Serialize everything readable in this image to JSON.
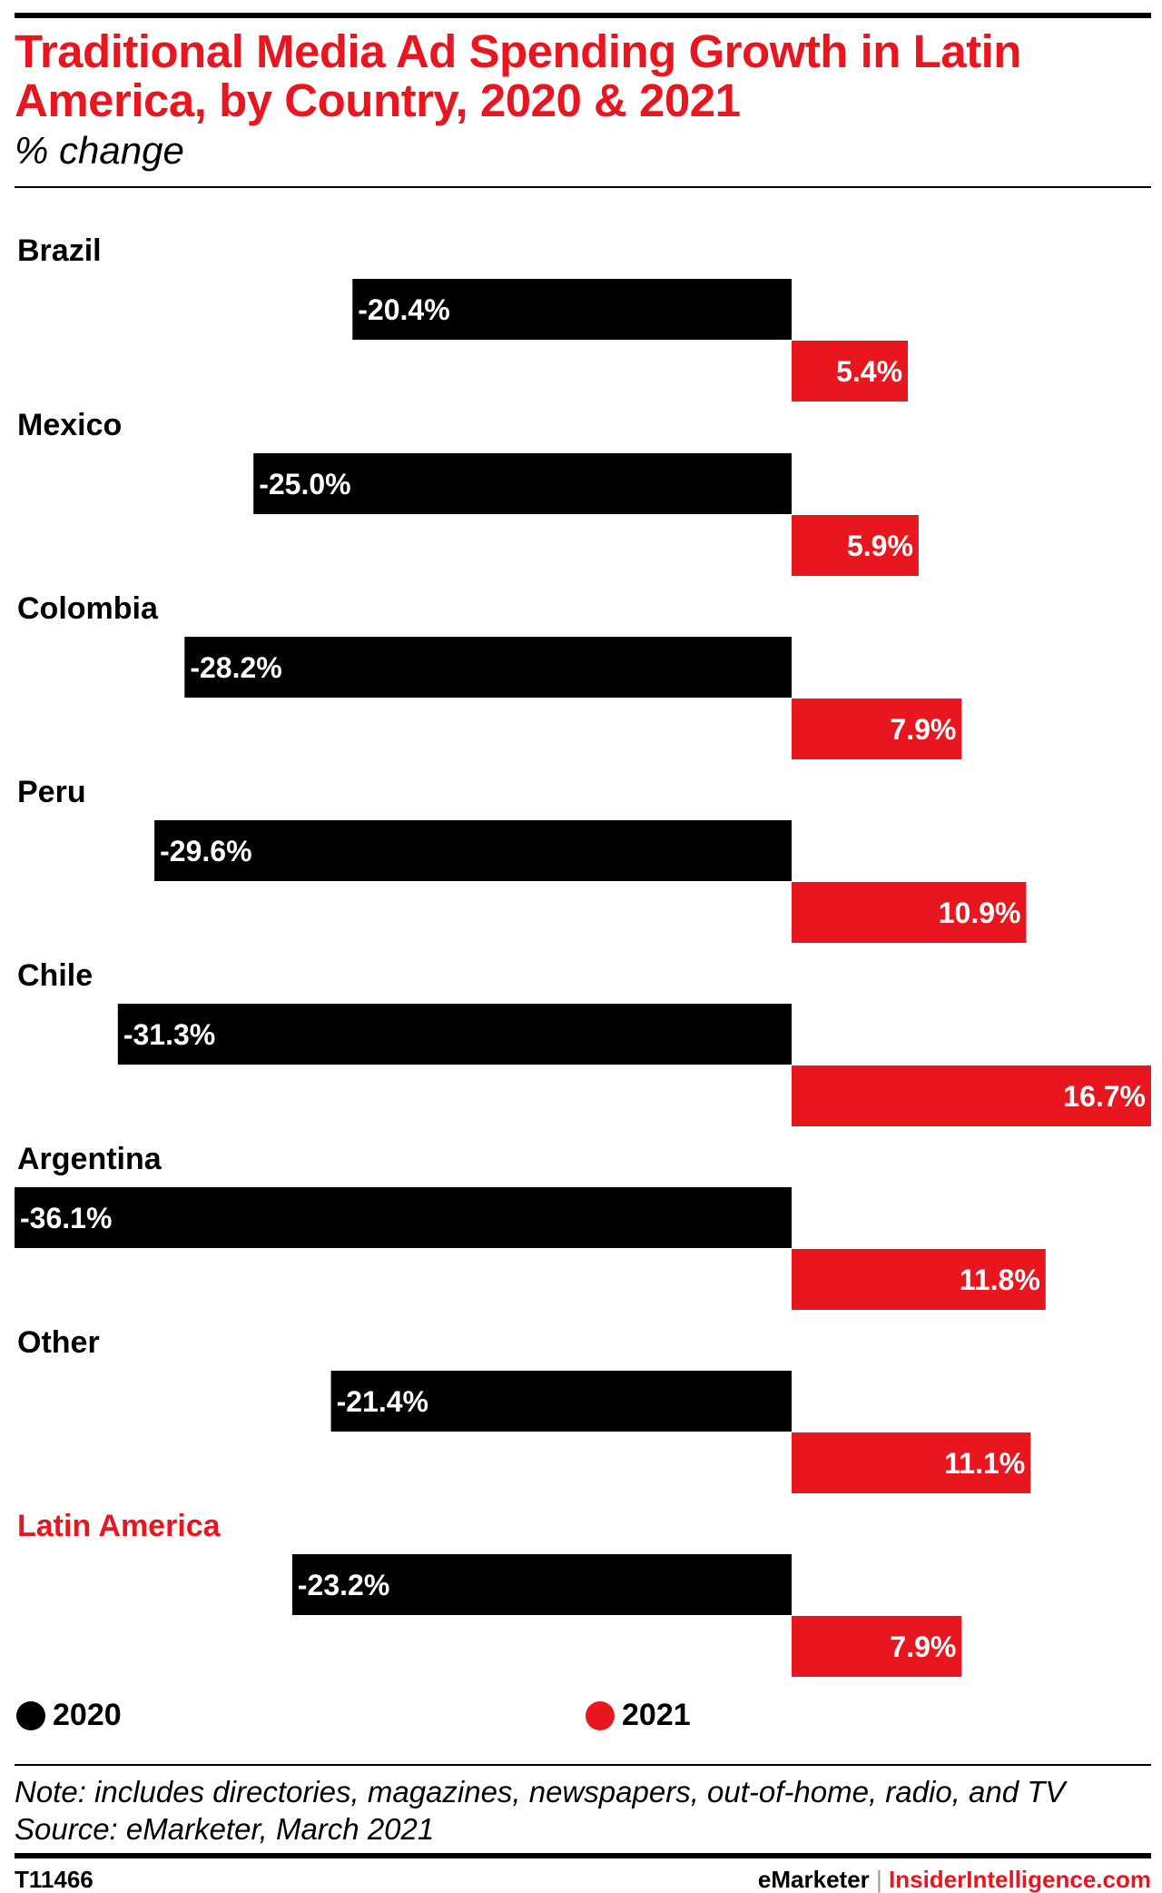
{
  "header": {
    "title": "Traditional Media Ad Spending Growth in Latin America, by Country, 2020 & 2021",
    "subtitle": "% change"
  },
  "colors": {
    "series_2020": "#000000",
    "series_2021": "#e8161f",
    "highlight": "#e8161f"
  },
  "chart_data": {
    "type": "bar",
    "orientation": "horizontal",
    "categories": [
      "Brazil",
      "Mexico",
      "Colombia",
      "Peru",
      "Chile",
      "Argentina",
      "Other",
      "Latin America"
    ],
    "highlighted_category": "Latin America",
    "series": [
      {
        "name": "2020",
        "values": [
          -20.4,
          -25.0,
          -28.2,
          -29.6,
          -31.3,
          -36.1,
          -21.4,
          -23.2
        ],
        "labels": [
          "-20.4%",
          "-25.0%",
          "-28.2%",
          "-29.6%",
          "-31.3%",
          "-36.1%",
          "-21.4%",
          "-23.2%"
        ]
      },
      {
        "name": "2021",
        "values": [
          5.4,
          5.9,
          7.9,
          10.9,
          16.7,
          11.8,
          11.1,
          7.9
        ],
        "labels": [
          "5.4%",
          "5.9%",
          "7.9%",
          "10.9%",
          "16.7%",
          "11.8%",
          "11.1%",
          "7.9%"
        ]
      }
    ],
    "xlim": [
      -36.1,
      16.7
    ],
    "unit": "%",
    "grid": false,
    "legend_position": "bottom"
  },
  "legend": {
    "items": [
      "2020",
      "2021"
    ]
  },
  "notes": {
    "note": "Note: includes directories, magazines, newspapers, out-of-home, radio, and TV",
    "source": "Source: eMarketer, March 2021"
  },
  "footer": {
    "chart_id": "T11466",
    "brand": "eMarketer",
    "separator": "|",
    "site": "InsiderIntelligence.com"
  }
}
